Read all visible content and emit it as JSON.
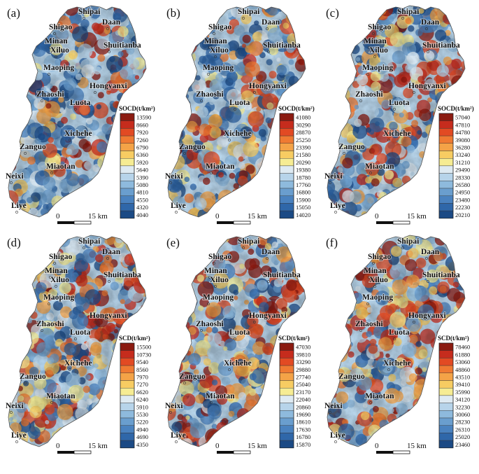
{
  "place_names": [
    "Shipai",
    "Daan",
    "Shigao",
    "Minan",
    "Xiluo",
    "Shuitianba",
    "Maoping",
    "Hongyanxi",
    "Zhaoshi",
    "Luota",
    "Xichehe",
    "Zanguo",
    "Miaotan",
    "Neixi",
    "Liye"
  ],
  "scale_bar": {
    "zero_label": "0",
    "distance_label": "15 km"
  },
  "colors": {
    "ramp": [
      "#8b1a10",
      "#c62c1d",
      "#e24a23",
      "#ef7a32",
      "#f4a347",
      "#f7cc62",
      "#f6ec93",
      "#deeaf2",
      "#b7d4ea",
      "#8ebadd",
      "#6a9ece",
      "#4a82bf",
      "#2f67a9",
      "#1b4a85"
    ],
    "background": "#ffffff",
    "outline": "#555555"
  },
  "panels": [
    {
      "label": "(a)",
      "legend": {
        "title": "SOCD(t/km²)",
        "ticks": [
          "13590",
          "8660",
          "7920",
          "7260",
          "6790",
          "6360",
          "5920",
          "5640",
          "5390",
          "5080",
          "4810",
          "4550",
          "4320",
          "4040"
        ]
      }
    },
    {
      "label": "(b)",
      "legend": {
        "title": "SOCD(t/km²)",
        "ticks": [
          "41080",
          "30290",
          "28870",
          "25250",
          "23390",
          "21580",
          "20290",
          "19380",
          "18780",
          "17760",
          "16800",
          "15900",
          "15050",
          "14020"
        ]
      }
    },
    {
      "label": "(c)",
      "legend": {
        "title": "SOCD(t/km²)",
        "ticks": [
          "57040",
          "47810",
          "44780",
          "39080",
          "36280",
          "33240",
          "31210",
          "29490",
          "28330",
          "26580",
          "24950",
          "23480",
          "22230",
          "20210"
        ]
      }
    },
    {
      "label": "(d)",
      "legend": {
        "title": "SCD(t/km²)",
        "ticks": [
          "15500",
          "10730",
          "9540",
          "8560",
          "7970",
          "7270",
          "6620",
          "6240",
          "5910",
          "5530",
          "5220",
          "4940",
          "4690",
          "4350"
        ]
      }
    },
    {
      "label": "(e)",
      "legend": {
        "title": "SCD(t/km²)",
        "ticks": [
          "47030",
          "39810",
          "33290",
          "29880",
          "27740",
          "25040",
          "23170",
          "22040",
          "20860",
          "19690",
          "18610",
          "17630",
          "16780",
          "15870"
        ]
      }
    },
    {
      "label": "(f)",
      "legend": {
        "title": "SCD(t/km²)",
        "ticks": [
          "78460",
          "61880",
          "53060",
          "48860",
          "43510",
          "39410",
          "35990",
          "34120",
          "32230",
          "30060",
          "28230",
          "26310",
          "25020",
          "23460"
        ]
      }
    }
  ]
}
